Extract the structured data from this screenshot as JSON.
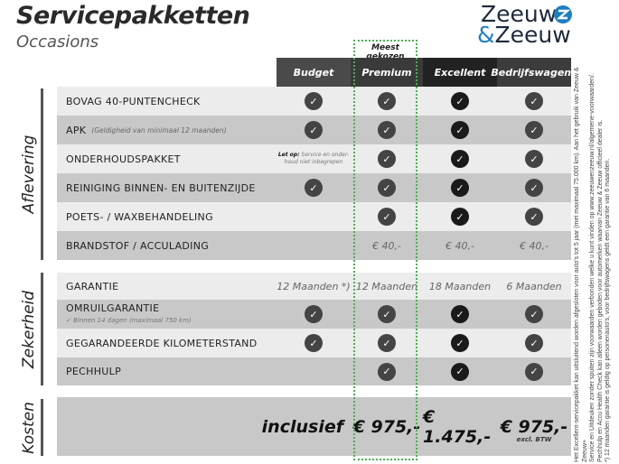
{
  "header": {
    "title": "Servicepakketten",
    "subtitle": "Occasions",
    "logo_line1": "Zeeuw",
    "logo_amp": "&",
    "logo_line2": "Zeeuw",
    "badge": "Meest gekozen"
  },
  "columns": [
    "Budget",
    "Premium",
    "Excellent",
    "Bedrijfswagens"
  ],
  "colors": {
    "budget": "#4a4a4a",
    "premium": "#3a3a3a",
    "excellent": "#222222",
    "bedrijfswagens": "#3c3c3c",
    "highlight": "#4caf50",
    "logo_blue": "#1e7fbf"
  },
  "sections": {
    "aflevering": "Aflevering",
    "zekerheid": "Zekerheid",
    "kosten": "Kosten"
  },
  "aflevering": [
    {
      "label": "BOVAG 40-PUNTENCHECK",
      "cells": [
        "check",
        "check",
        "check",
        "check"
      ]
    },
    {
      "label": "APK",
      "note": "(Geldigheid van minimaal 12 maanden)",
      "cells": [
        "check",
        "check",
        "check",
        "check"
      ]
    },
    {
      "label": "ONDERHOUDSPAKKET",
      "cells": [
        "",
        "check",
        "check",
        "check"
      ],
      "budget_note_bold": "Let op:",
      "budget_note": "Service en onder-houd niet inbegrepen"
    },
    {
      "label": "REINIGING BINNEN- EN BUITENZIJDE",
      "cells": [
        "check",
        "check",
        "check",
        "check"
      ]
    },
    {
      "label": "POETS- / WAXBEHANDELING",
      "cells": [
        "",
        "check",
        "check",
        "check"
      ]
    },
    {
      "label": "BRANDSTOF / ACCULADING",
      "cells": [
        "",
        "€ 40,-",
        "€ 40,-",
        "€ 40,-"
      ]
    }
  ],
  "zekerheid": [
    {
      "label": "GARANTIE",
      "cells": [
        "12 Maanden *)",
        "12 Maanden",
        "18 Maanden",
        "6 Maanden"
      ]
    },
    {
      "label": "OMRUILGARANTIE",
      "sub": "✓  Binnen 14 dagen (maximaal 750 km)",
      "cells": [
        "check",
        "check",
        "check",
        "check"
      ]
    },
    {
      "label": "GEGARANDEERDE KILOMETERSTAND",
      "cells": [
        "check",
        "check",
        "check",
        "check"
      ]
    },
    {
      "label": "PECHHULP",
      "cells": [
        "",
        "check",
        "check",
        "check"
      ]
    }
  ],
  "kosten": {
    "prices": [
      "inclusief",
      "€ 975,-",
      "€ 1.475,-",
      "€ 975,-"
    ],
    "excl": "excl. BTW"
  },
  "footnote": [
    "Het Excellent-servicepakket kan uitsluitend worden afgesloten voor auto's tot 5 jaar (met maximaal 75.000 km). Aan het gebruik van Zeeuw & Zeeuw+",
    "Service en Uitdeuken zonder spuiten zijn voorwaarden verbonden welke u kunt vinden op www.zeeuwenzeeuw.nl/algemene-voorwaarden/.",
    "Pechhulp en Accu Health Check kan alleen worden geboden voor automerken waarvan Zeeuw & Zeeuw officieel dealer is.",
    "*) 12 maanden garantie is geldig op personenauto's, voor bedrijfswagens geldt een garantie van 6 maanden."
  ]
}
